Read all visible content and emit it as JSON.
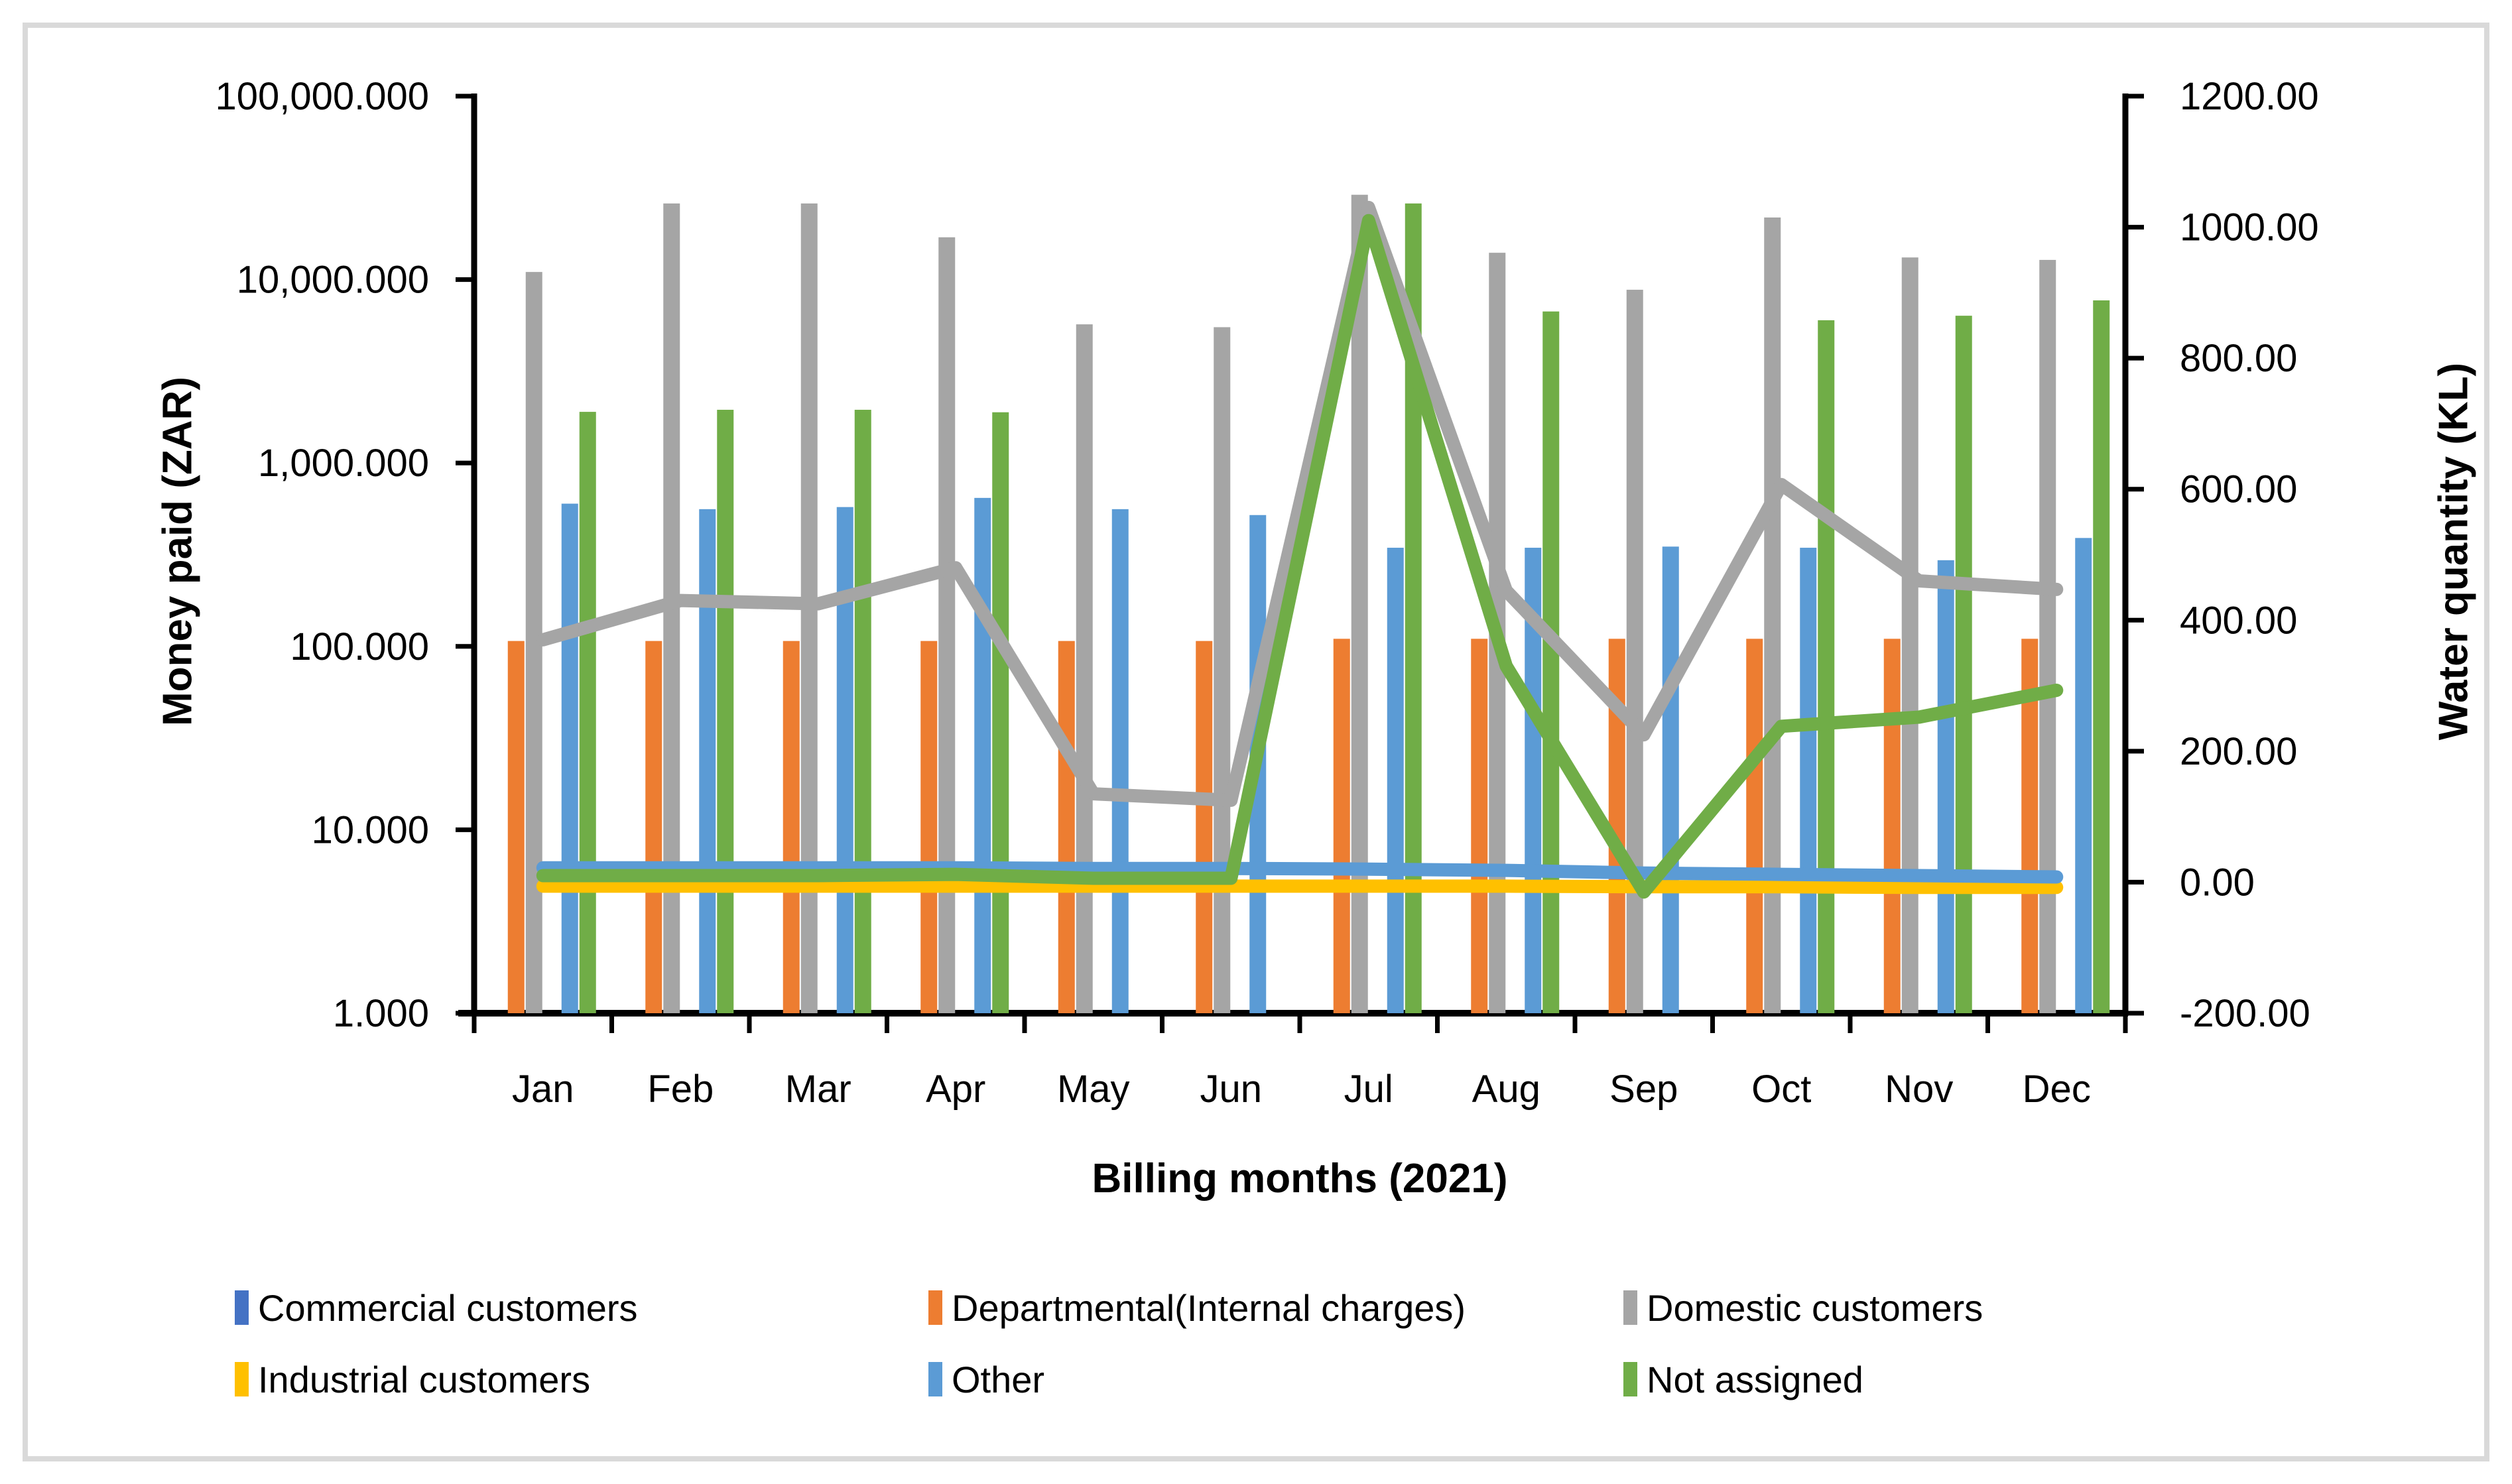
{
  "chart_data": {
    "type": "combo-bar-line",
    "categories": [
      "Jan",
      "Feb",
      "Mar",
      "Apr",
      "May",
      "Jun",
      "Jul",
      "Aug",
      "Sep",
      "Oct",
      "Nov",
      "Dec"
    ],
    "x_axis": {
      "title": "Billing months (2021)"
    },
    "left_axis": {
      "title": "Money paid (ZAR)",
      "scale": "log10",
      "min": 1,
      "max": 100000,
      "tick_labels": [
        "100,000.000",
        "10,000.000",
        "1,000.000",
        "100.000",
        "10.000",
        "1.000"
      ]
    },
    "right_axis": {
      "title": "Water quantity (KL)",
      "scale": "linear",
      "min": -200,
      "max": 1200,
      "tick_labels": [
        "1200.00",
        "1000.00",
        "800.00",
        "600.00",
        "400.00",
        "200.00",
        "0.00",
        "-200.00"
      ]
    },
    "bar_series": [
      {
        "name": "Commercial customers",
        "color": "#4472C4",
        "values": [
          null,
          null,
          null,
          null,
          null,
          null,
          null,
          null,
          null,
          null,
          null,
          null
        ]
      },
      {
        "name": "Departmental(Internal charges)",
        "color": "#ED7D31",
        "values": [
          107,
          107,
          107,
          107,
          107,
          107,
          110,
          110,
          110,
          110,
          110,
          110
        ]
      },
      {
        "name": "Domestic customers",
        "color": "#A5A5A5",
        "values": [
          11000,
          26000,
          26000,
          17000,
          5700,
          5500,
          29000,
          14000,
          8800,
          21800,
          13200,
          12800
        ]
      },
      {
        "name": "Industrial customers",
        "color": "#FFC000",
        "values": [
          null,
          null,
          null,
          null,
          null,
          null,
          null,
          null,
          null,
          null,
          null,
          null
        ]
      },
      {
        "name": "Other",
        "color": "#5B9BD5",
        "values": [
          600,
          560,
          575,
          645,
          560,
          520,
          345,
          345,
          350,
          345,
          295,
          390
        ]
      },
      {
        "name": "Not assigned",
        "color": "#70AD47",
        "values": [
          1900,
          1950,
          1950,
          1890,
          null,
          null,
          26000,
          6700,
          null,
          6000,
          6350,
          7700
        ]
      }
    ],
    "line_series": [
      {
        "name": "Domestic customers",
        "color": "#A5A5A5",
        "values": [
          370,
          430,
          425,
          480,
          135,
          125,
          1030,
          445,
          225,
          607,
          460,
          447
        ]
      },
      {
        "name": "Industrial customers",
        "color": "#FFC000",
        "values": [
          -6,
          -6,
          -6,
          -6,
          -6,
          -6,
          -6,
          -6,
          -7,
          -7,
          -8,
          -8
        ]
      },
      {
        "name": "Other",
        "color": "#5B9BD5",
        "values": [
          22,
          22,
          22,
          22,
          21,
          21,
          20,
          18,
          14,
          12,
          10,
          8
        ]
      },
      {
        "name": "Not assigned",
        "color": "#70AD47",
        "values": [
          10,
          10,
          10,
          12,
          6,
          6,
          1010,
          330,
          -15,
          238,
          252,
          293
        ]
      }
    ],
    "legend": {
      "position": "bottom",
      "items": [
        {
          "label": "Commercial customers",
          "color": "#4472C4"
        },
        {
          "label": "Departmental(Internal charges)",
          "color": "#ED7D31"
        },
        {
          "label": "Domestic customers",
          "color": "#A5A5A5"
        },
        {
          "label": "Industrial customers",
          "color": "#FFC000"
        },
        {
          "label": "Other",
          "color": "#5B9BD5"
        },
        {
          "label": "Not assigned",
          "color": "#70AD47"
        }
      ]
    }
  }
}
